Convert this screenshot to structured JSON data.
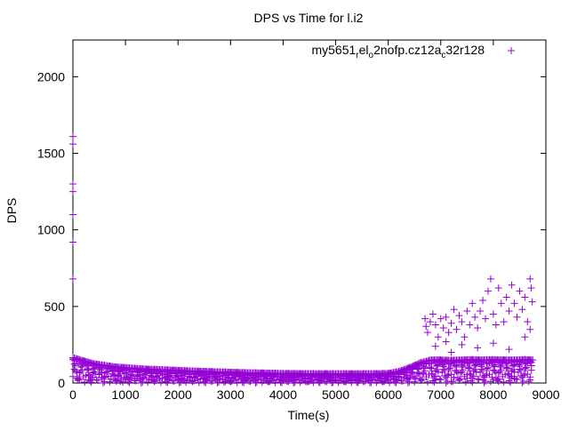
{
  "chart_data": {
    "type": "scatter",
    "title": "DPS vs Time for l.i2",
    "xlabel": "Time(s)",
    "ylabel": "DPS",
    "xlim": [
      0,
      9000
    ],
    "ylim": [
      0,
      2240
    ],
    "xticks": [
      "0",
      "1000",
      "2000",
      "3000",
      "4000",
      "5000",
      "6000",
      "7000",
      "8000",
      "9000"
    ],
    "yticks": [
      "0",
      "500",
      "1000",
      "1500",
      "2000"
    ],
    "legend_position": "top-right",
    "series": [
      {
        "name": "my5651_rel_o2nofp.cz12a_c32r128",
        "legend_parts": {
          "a": "my5651",
          "b": "r",
          "c": "el",
          "d": "o",
          "e": "2nofp.cz12a",
          "f": "c",
          "g": "32r128"
        },
        "color": "#9400d3",
        "points": [
          [
            0,
            1610
          ],
          [
            0,
            1560
          ],
          [
            0,
            1300
          ],
          [
            0,
            1250
          ],
          [
            0,
            1100
          ],
          [
            0,
            920
          ],
          [
            0,
            680
          ],
          [
            0,
            165
          ],
          [
            100,
            155
          ],
          [
            200,
            145
          ],
          [
            300,
            135
          ],
          [
            400,
            125
          ],
          [
            500,
            120
          ],
          [
            600,
            115
          ],
          [
            800,
            105
          ],
          [
            1000,
            100
          ],
          [
            1200,
            95
          ],
          [
            1400,
            90
          ],
          [
            1600,
            88
          ],
          [
            1800,
            85
          ],
          [
            2000,
            82
          ],
          [
            2300,
            78
          ],
          [
            2600,
            74
          ],
          [
            3000,
            70
          ],
          [
            3300,
            67
          ],
          [
            3600,
            65
          ],
          [
            4000,
            62
          ],
          [
            4400,
            61
          ],
          [
            4800,
            60
          ],
          [
            5200,
            60
          ],
          [
            5600,
            60
          ],
          [
            6000,
            62
          ],
          [
            6200,
            75
          ],
          [
            6400,
            100
          ],
          [
            6600,
            130
          ],
          [
            6800,
            150
          ],
          [
            7000,
            150
          ],
          [
            7200,
            148
          ],
          [
            7400,
            150
          ],
          [
            7600,
            152
          ],
          [
            7800,
            150
          ],
          [
            8000,
            152
          ],
          [
            8200,
            150
          ],
          [
            8400,
            150
          ],
          [
            8600,
            152
          ],
          [
            8750,
            150
          ],
          [
            100,
            30
          ],
          [
            300,
            20
          ],
          [
            600,
            40
          ],
          [
            900,
            10
          ],
          [
            1200,
            30
          ],
          [
            1500,
            20
          ],
          [
            1800,
            40
          ],
          [
            2100,
            15
          ],
          [
            2500,
            30
          ],
          [
            2900,
            10
          ],
          [
            3300,
            25
          ],
          [
            3700,
            15
          ],
          [
            4100,
            20
          ],
          [
            4500,
            10
          ],
          [
            4900,
            20
          ],
          [
            5300,
            15
          ],
          [
            5700,
            20
          ],
          [
            6100,
            30
          ],
          [
            6500,
            40
          ],
          [
            6900,
            20
          ],
          [
            7200,
            10
          ],
          [
            7500,
            30
          ],
          [
            7800,
            20
          ],
          [
            8100,
            10
          ],
          [
            8400,
            30
          ],
          [
            8700,
            20
          ],
          [
            6700,
            420
          ],
          [
            6720,
            370
          ],
          [
            6750,
            330
          ],
          [
            6800,
            400
          ],
          [
            6850,
            450
          ],
          [
            6900,
            380
          ],
          [
            6950,
            300
          ],
          [
            7000,
            420
          ],
          [
            7050,
            360
          ],
          [
            7100,
            430
          ],
          [
            7150,
            330
          ],
          [
            7200,
            390
          ],
          [
            7250,
            480
          ],
          [
            7300,
            350
          ],
          [
            7350,
            440
          ],
          [
            7400,
            400
          ],
          [
            7450,
            300
          ],
          [
            7500,
            470
          ],
          [
            7550,
            380
          ],
          [
            7600,
            520
          ],
          [
            7650,
            430
          ],
          [
            7700,
            360
          ],
          [
            7750,
            470
          ],
          [
            7800,
            540
          ],
          [
            7850,
            420
          ],
          [
            7900,
            600
          ],
          [
            7950,
            680
          ],
          [
            8000,
            450
          ],
          [
            8050,
            380
          ],
          [
            8100,
            620
          ],
          [
            8150,
            520
          ],
          [
            8200,
            400
          ],
          [
            8250,
            560
          ],
          [
            8300,
            470
          ],
          [
            8350,
            640
          ],
          [
            8400,
            520
          ],
          [
            8450,
            430
          ],
          [
            8500,
            600
          ],
          [
            8550,
            480
          ],
          [
            8600,
            560
          ],
          [
            8650,
            400
          ],
          [
            8700,
            680
          ],
          [
            8720,
            620
          ],
          [
            8740,
            530
          ],
          [
            8700,
            350
          ],
          [
            7200,
            200
          ],
          [
            7400,
            250
          ],
          [
            7700,
            230
          ],
          [
            8000,
            260
          ],
          [
            8300,
            220
          ],
          [
            8600,
            300
          ],
          [
            6900,
            240
          ],
          [
            7100,
            270
          ]
        ]
      }
    ]
  }
}
